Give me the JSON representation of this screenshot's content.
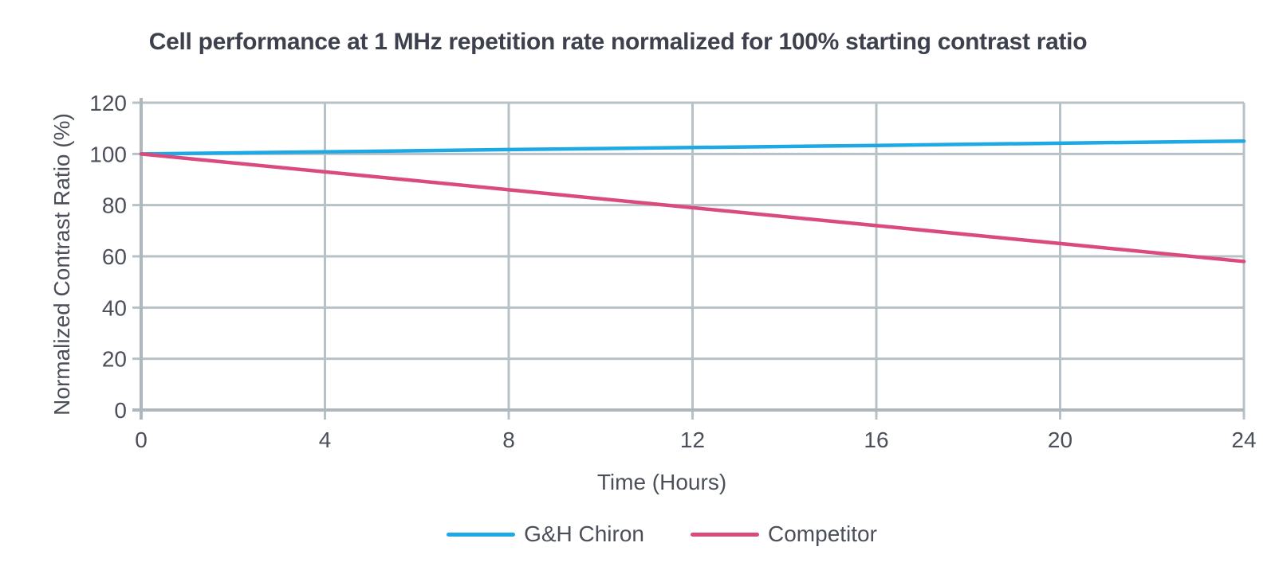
{
  "chart_data": {
    "type": "line",
    "title": "Cell performance at 1 MHz repetition rate normalized for 100% starting contrast ratio",
    "xlabel": "Time (Hours)",
    "ylabel": "Normalized Contrast Ratio (%)",
    "x": [
      0,
      4,
      8,
      12,
      16,
      20,
      24
    ],
    "xticks": [
      0,
      4,
      8,
      12,
      16,
      20,
      24
    ],
    "yticks": [
      0,
      20,
      40,
      60,
      80,
      100,
      120
    ],
    "xlim": [
      0,
      24
    ],
    "ylim": [
      0,
      120
    ],
    "grid": true,
    "legend_position": "bottom",
    "series": [
      {
        "name": "G&H Chiron",
        "color": "#1ea9e4",
        "values": [
          100,
          100.8,
          101.7,
          102.5,
          103.3,
          104.2,
          105
        ]
      },
      {
        "name": "Competitor",
        "color": "#d94b7e",
        "values": [
          100,
          93,
          86,
          79,
          72,
          65,
          58
        ]
      }
    ]
  },
  "colors": {
    "gridline": "#b8c1c5",
    "axis": "#aeb8bc",
    "title_text": "#3d414d",
    "label_text": "#4b4f59",
    "background": "#ffffff"
  }
}
